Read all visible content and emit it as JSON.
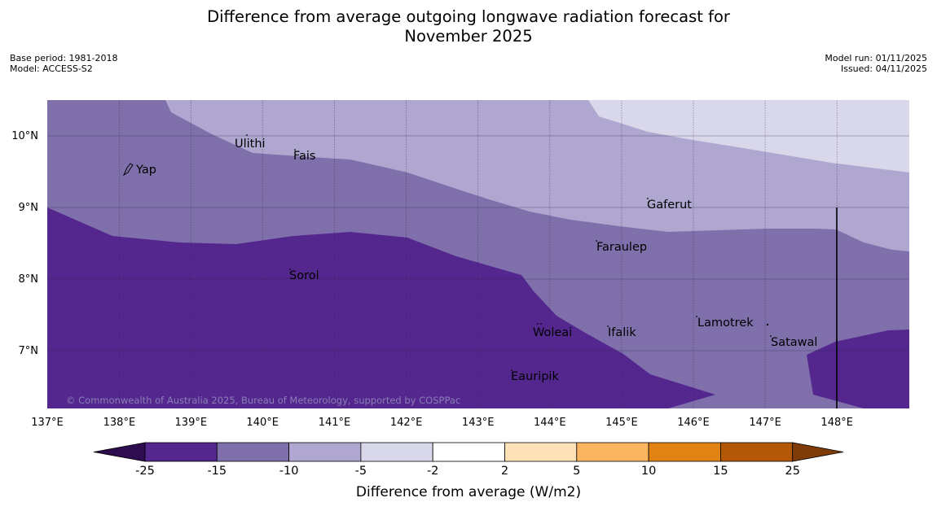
{
  "title": {
    "line1": "Difference from average outgoing longwave radiation forecast for",
    "line2": "November 2025"
  },
  "meta": {
    "base_period": "Base period: 1981-2018",
    "model": "Model: ACCESS-S2",
    "model_run": "Model run: 01/11/2025",
    "issued": "Issued: 04/11/2025"
  },
  "map": {
    "x_ticks": [
      "137°E",
      "138°E",
      "139°E",
      "140°E",
      "141°E",
      "142°E",
      "143°E",
      "144°E",
      "145°E",
      "146°E",
      "147°E",
      "148°E"
    ],
    "y_ticks": [
      "10°N",
      "9°N",
      "8°N",
      "7°N"
    ],
    "places": [
      {
        "name": "Ulithi"
      },
      {
        "name": "Fais"
      },
      {
        "name": "Yap"
      },
      {
        "name": "Gaferut"
      },
      {
        "name": "Faraulep"
      },
      {
        "name": "Sorol"
      },
      {
        "name": "Woleai"
      },
      {
        "name": "Ifalik"
      },
      {
        "name": "Lamotrek"
      },
      {
        "name": "Satawal"
      },
      {
        "name": "Eauripik"
      }
    ],
    "copyright": "© Commonwealth of Australia 2025, Bureau of Meteorology, supported by COSPPac"
  },
  "colorbar": {
    "ticks": [
      "-25",
      "-15",
      "-10",
      "-5",
      "-2",
      "2",
      "5",
      "10",
      "15",
      "25"
    ],
    "colors": [
      "#2e0c50",
      "#54278f",
      "#7f70ac",
      "#afa7d0",
      "#d8d8ea",
      "#ffffff",
      "#fde2b8",
      "#fbb460",
      "#e08214",
      "#b35806",
      "#7f3b08"
    ],
    "label": "Difference from average (W/m2)"
  }
}
